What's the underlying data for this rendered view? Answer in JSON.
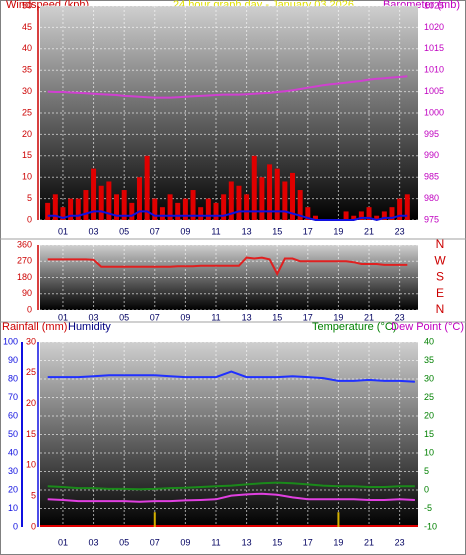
{
  "chart_data": [
    {
      "type": "bar",
      "title": "24 hour graph day - January 03 2026",
      "ylabel": "Windspeed (kph)",
      "y2label": "Barometer (mb)",
      "xlim": [
        -0.5,
        24.2
      ],
      "xticks": [
        {
          "value": 1,
          "label": "01"
        },
        {
          "value": 3,
          "label": "03"
        },
        {
          "value": 5,
          "label": "05"
        },
        {
          "value": 7,
          "label": "07"
        },
        {
          "value": 9,
          "label": "09"
        },
        {
          "value": 11,
          "label": "11"
        },
        {
          "value": 13,
          "label": "13"
        },
        {
          "value": 15,
          "label": "15"
        },
        {
          "value": 17,
          "label": "17"
        },
        {
          "value": 19,
          "label": "19"
        },
        {
          "value": 21,
          "label": "21"
        },
        {
          "value": 23,
          "label": "23"
        }
      ],
      "ylim": [
        0,
        50
      ],
      "yticks": [
        0,
        5,
        10,
        15,
        20,
        25,
        30,
        35,
        40,
        45,
        50
      ],
      "y2lim": [
        975,
        1025
      ],
      "y2ticks": [
        975,
        980,
        985,
        990,
        995,
        1000,
        1005,
        1010,
        1015,
        1020,
        1025
      ],
      "grid": true,
      "x": [
        0,
        0.5,
        1,
        1.5,
        2,
        2.5,
        3,
        3.5,
        4,
        4.5,
        5,
        5.5,
        6,
        6.5,
        7,
        7.5,
        8,
        8.5,
        9,
        9.5,
        10,
        10.5,
        11,
        11.5,
        12,
        12.5,
        13,
        13.5,
        14,
        14.5,
        15,
        15.5,
        16,
        16.5,
        17,
        17.5,
        18,
        18.5,
        19,
        19.5,
        20,
        20.5,
        21,
        21.5,
        22,
        22.5,
        23,
        23.5
      ],
      "series": [
        {
          "type": "bar",
          "color": "#e00000",
          "values": [
            4,
            6,
            3,
            5,
            5,
            7,
            12,
            8,
            9,
            6,
            7,
            4,
            10,
            15,
            5,
            3,
            6,
            4,
            5,
            7,
            3,
            5,
            4,
            6,
            9,
            8,
            6,
            15,
            10,
            13,
            12,
            9,
            11,
            7,
            3,
            1,
            0,
            0,
            0,
            2,
            1,
            2,
            3,
            1,
            2,
            3,
            5,
            6
          ]
        },
        {
          "type": "line",
          "color": "#1010e0",
          "values": [
            1,
            1,
            0.5,
            1,
            1,
            1.5,
            2,
            2,
            1.5,
            1,
            1,
            1,
            2,
            2,
            1,
            1,
            1,
            1,
            1,
            1,
            1,
            1,
            1,
            1,
            1.5,
            2,
            2,
            2,
            2,
            2,
            2,
            2,
            1.5,
            1,
            0.5,
            0,
            0,
            0,
            0,
            0,
            0,
            0.5,
            0.5,
            0,
            0.5,
            0.5,
            1,
            1
          ]
        },
        {
          "type": "line",
          "axis": "y2",
          "color": "#d040d0",
          "values": [
            1005,
            1004.9,
            1004.9,
            1004.8,
            1004.7,
            1004.6,
            1004.5,
            1004.4,
            1004.3,
            1004.2,
            1004,
            1003.9,
            1003.8,
            1003.7,
            1003.6,
            1003.6,
            1003.6,
            1003.7,
            1003.8,
            1003.9,
            1004,
            1004.1,
            1004.2,
            1004.3,
            1004.3,
            1004.3,
            1004.4,
            1004.5,
            1004.6,
            1004.7,
            1004.9,
            1005.1,
            1005.3,
            1005.6,
            1005.9,
            1006.2,
            1006.5,
            1006.7,
            1006.9,
            1007.1,
            1007.3,
            1007.5,
            1007.8,
            1008,
            1008.1,
            1008.3,
            1008.4,
            1008.6
          ]
        }
      ]
    },
    {
      "type": "line",
      "xlim": [
        -0.5,
        24.2
      ],
      "xticks": [
        {
          "value": 1,
          "label": "01"
        },
        {
          "value": 3,
          "label": "03"
        },
        {
          "value": 5,
          "label": "05"
        },
        {
          "value": 7,
          "label": "07"
        },
        {
          "value": 9,
          "label": "09"
        },
        {
          "value": 11,
          "label": "11"
        },
        {
          "value": 13,
          "label": "13"
        },
        {
          "value": 15,
          "label": "15"
        },
        {
          "value": 17,
          "label": "17"
        },
        {
          "value": 19,
          "label": "19"
        },
        {
          "value": 21,
          "label": "21"
        },
        {
          "value": 23,
          "label": "23"
        }
      ],
      "ylim": [
        0,
        360
      ],
      "yticks": [
        0,
        90,
        180,
        270,
        360
      ],
      "y2lim": [
        0,
        360
      ],
      "y2ticks": [
        {
          "value": 0,
          "label": "N"
        },
        {
          "value": 90,
          "label": "E"
        },
        {
          "value": 180,
          "label": "S"
        },
        {
          "value": 270,
          "label": "W"
        },
        {
          "value": 360,
          "label": "N"
        }
      ],
      "grid": true,
      "x": [
        0,
        0.5,
        1,
        1.5,
        2,
        2.5,
        3,
        3.5,
        4,
        4.5,
        5,
        5.5,
        6,
        6.5,
        7,
        7.5,
        8,
        8.5,
        9,
        9.5,
        10,
        10.5,
        11,
        11.5,
        12,
        12.5,
        13,
        13.5,
        14,
        14.5,
        15,
        15.5,
        16,
        16.5,
        17,
        17.5,
        18,
        18.5,
        19,
        19.5,
        20,
        20.5,
        21,
        21.5,
        22,
        22.5,
        23,
        23.5
      ],
      "series": [
        {
          "type": "line",
          "color": "#e02020",
          "values": [
            280,
            280,
            280,
            280,
            280,
            280,
            278,
            240,
            240,
            240,
            240,
            240,
            240,
            240,
            240,
            240,
            240,
            242,
            242,
            242,
            245,
            245,
            245,
            245,
            245,
            245,
            290,
            285,
            290,
            280,
            200,
            285,
            285,
            270,
            270,
            270,
            270,
            270,
            270,
            270,
            265,
            255,
            255,
            255,
            250,
            250,
            250,
            250
          ]
        }
      ]
    },
    {
      "type": "line",
      "xlim": [
        -0.5,
        24.2
      ],
      "xticks": [
        {
          "value": 1,
          "label": "01"
        },
        {
          "value": 3,
          "label": "03"
        },
        {
          "value": 5,
          "label": "05"
        },
        {
          "value": 7,
          "label": "07"
        },
        {
          "value": 9,
          "label": "09"
        },
        {
          "value": 11,
          "label": "11"
        },
        {
          "value": 13,
          "label": "13"
        },
        {
          "value": 15,
          "label": "15"
        },
        {
          "value": 17,
          "label": "17"
        },
        {
          "value": 19,
          "label": "19"
        },
        {
          "value": 21,
          "label": "21"
        },
        {
          "value": 23,
          "label": "23"
        }
      ],
      "ylim": [
        0,
        100
      ],
      "yticks": [
        0,
        10,
        20,
        30,
        40,
        50,
        60,
        70,
        80,
        90,
        100
      ],
      "y3lim": [
        0,
        30
      ],
      "y3ticks": [
        0,
        5,
        10,
        15,
        20,
        25,
        30
      ],
      "y2lim": [
        -10,
        40
      ],
      "y2ticks": [
        -10,
        -5,
        0,
        5,
        10,
        15,
        20,
        25,
        30,
        35,
        40
      ],
      "grid": true,
      "x": [
        0,
        1,
        2,
        3,
        4,
        5,
        6,
        7,
        8,
        9,
        10,
        11,
        12,
        13,
        14,
        15,
        16,
        17,
        18,
        19,
        20,
        21,
        22,
        23,
        24
      ],
      "series": [
        {
          "name": "Rainfall (mm)",
          "type": "bar",
          "axis": "y3",
          "color": "#d4b000",
          "values": [
            0,
            0,
            0,
            0,
            0,
            0,
            0,
            2.4,
            0,
            0,
            0,
            0,
            0,
            0,
            0,
            0,
            0,
            0,
            0,
            2.4,
            0,
            0,
            0,
            0,
            0
          ]
        },
        {
          "name": "Humidity",
          "type": "line",
          "color": "#2030ff",
          "values": [
            81,
            81,
            81,
            81.5,
            82,
            82,
            82,
            82,
            81.5,
            81,
            81,
            81,
            84,
            81,
            81,
            81,
            81.5,
            81,
            80.5,
            79,
            79,
            79.5,
            79,
            79,
            78.5
          ]
        },
        {
          "name": "Temperature (°C)",
          "type": "line",
          "axis": "y2",
          "color": "#1a8a1a",
          "values": [
            1,
            0.8,
            0.5,
            0.5,
            0.3,
            0.3,
            0.2,
            0.3,
            0.5,
            0.6,
            0.8,
            1,
            1.2,
            1.5,
            1.8,
            2,
            1.8,
            1.5,
            1.2,
            1,
            1,
            0.8,
            0.8,
            1,
            1
          ]
        },
        {
          "name": "Dew Point (°C)",
          "type": "line",
          "axis": "y2",
          "color": "#e040e0",
          "values": [
            -2.5,
            -2.7,
            -3,
            -3,
            -3,
            -3,
            -3.2,
            -3,
            -3,
            -2.8,
            -2.7,
            -2.5,
            -1.5,
            -1.2,
            -1,
            -1.3,
            -2,
            -2.5,
            -2.5,
            -2.5,
            -2.5,
            -2.7,
            -2.7,
            -2.5,
            -2.7
          ]
        }
      ]
    }
  ]
}
